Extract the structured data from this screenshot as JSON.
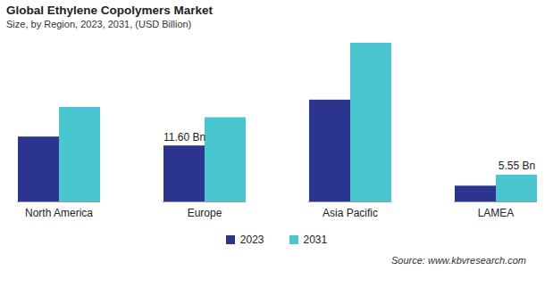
{
  "chart_data": {
    "type": "bar",
    "title": "Global Ethylene Copolymers Market",
    "subtitle": "Size, by Region, 2023, 2031, (USD Billion)",
    "caption": "Source: www.kbvresearch.com",
    "categories": [
      "North America",
      "Europe",
      "Asia Pacific",
      "LAMEA"
    ],
    "series": [
      {
        "name": "2023",
        "color": "#2b3590",
        "values": [
          13.45,
          11.6,
          21.1,
          3.27
        ],
        "value_labels": [
          null,
          "11.60 Bn",
          null,
          null
        ]
      },
      {
        "name": "2031",
        "color": "#4ac6d0",
        "values": [
          19.6,
          17.45,
          32.9,
          5.55
        ],
        "value_labels": [
          null,
          null,
          null,
          "5.55 Bn"
        ]
      }
    ],
    "ylim": [
      0,
      34
    ],
    "data_labels": true,
    "tick_labels": "x",
    "legend": "bottom"
  }
}
